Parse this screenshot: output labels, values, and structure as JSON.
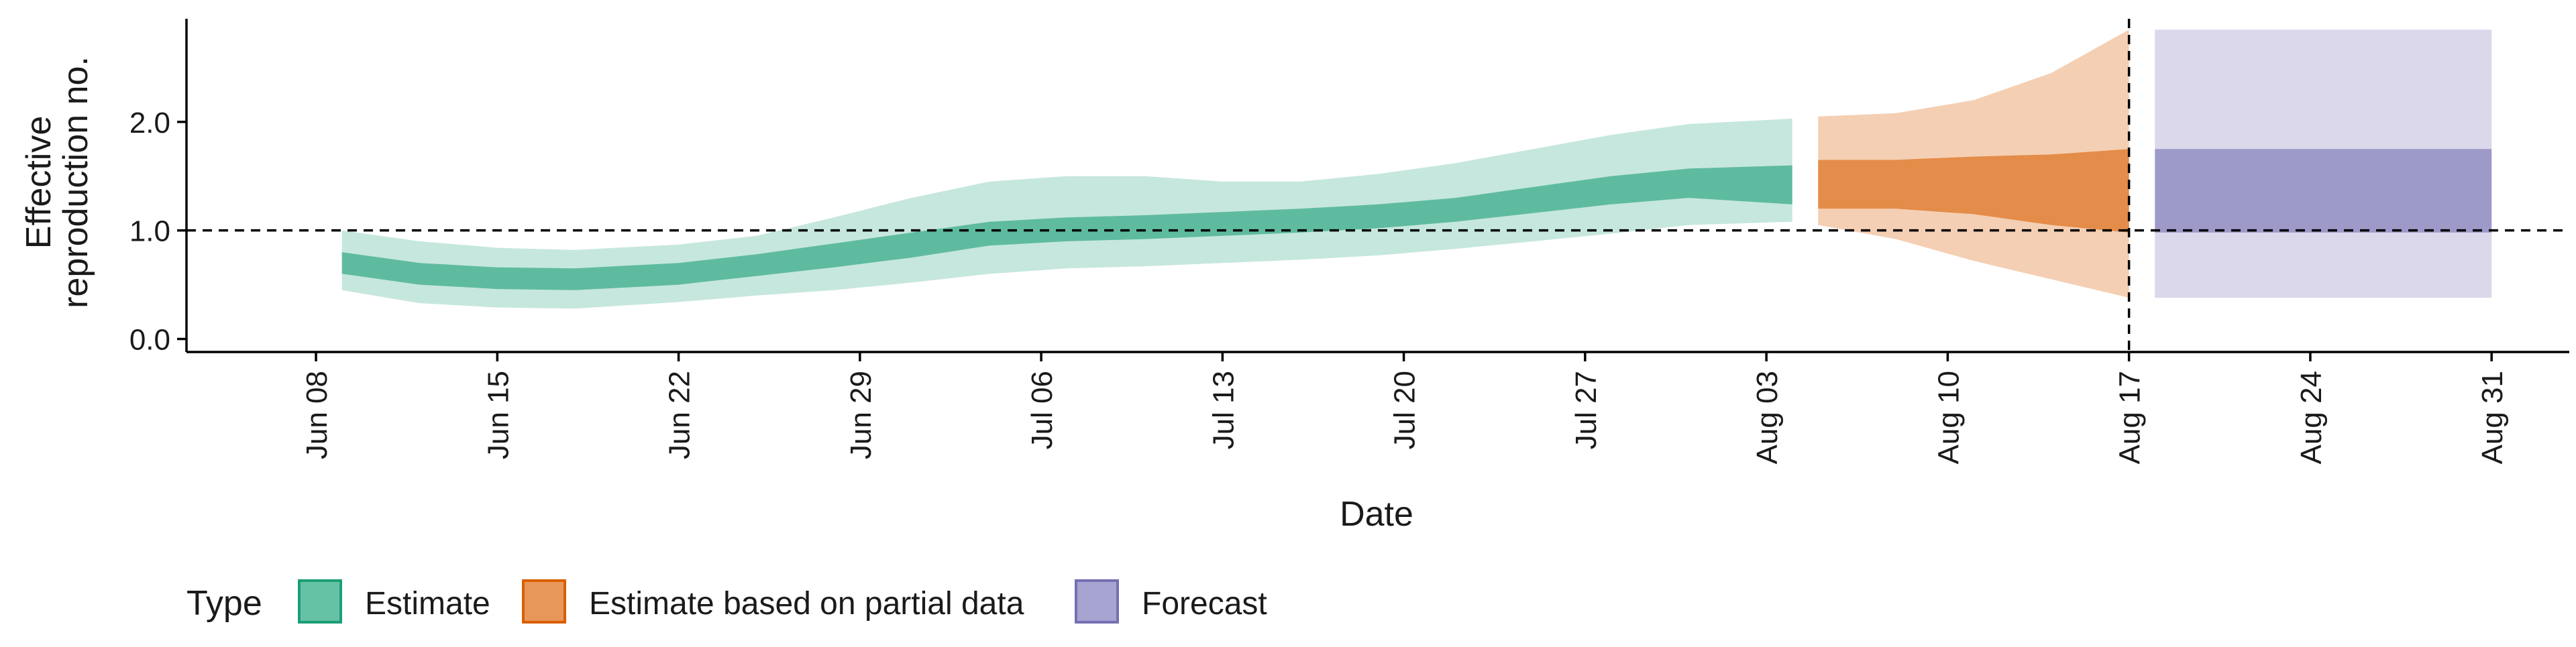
{
  "chart_data": {
    "type": "area",
    "ylabel_lines": [
      "Effective",
      "reproduction no."
    ],
    "xlabel": "Date",
    "y_ticks": [
      0.0,
      1.0,
      2.0
    ],
    "y_tick_labels": [
      "0.0",
      "1.0",
      "2.0"
    ],
    "ylim": [
      -0.12,
      2.95
    ],
    "xlim": [
      "2020-06-03",
      "2020-09-03"
    ],
    "x_ticks": [
      "2020-06-08",
      "2020-06-15",
      "2020-06-22",
      "2020-06-29",
      "2020-07-06",
      "2020-07-13",
      "2020-07-20",
      "2020-07-27",
      "2020-08-03",
      "2020-08-10",
      "2020-08-17",
      "2020-08-24",
      "2020-08-31"
    ],
    "x_tick_labels": [
      "Jun 08",
      "Jun 15",
      "Jun 22",
      "Jun 29",
      "Jul 06",
      "Jul 13",
      "Jul 20",
      "Jul 27",
      "Aug 03",
      "Aug 10",
      "Aug 17",
      "Aug 24",
      "Aug 31"
    ],
    "reference_hline": 1.0,
    "reference_vline": "2020-08-17",
    "grid": false,
    "legend_position": "bottom",
    "legend": {
      "title": "Type",
      "items": [
        {
          "label": "Estimate",
          "fill": "#66c2a5",
          "border": "#1b9e77"
        },
        {
          "label": "Estimate based on partial data",
          "fill": "#e8975b",
          "border": "#d95f02"
        },
        {
          "label": "Forecast",
          "fill": "#a8a4d2",
          "border": "#7570b3"
        }
      ]
    },
    "series": [
      {
        "name": "Estimate",
        "color": "#1b9e77",
        "outer_opacity": 0.25,
        "inner_opacity": 0.6,
        "points": [
          {
            "x": "2020-06-09",
            "outer_lo": 0.45,
            "outer_hi": 1.0,
            "inner_lo": 0.6,
            "inner_hi": 0.8
          },
          {
            "x": "2020-06-12",
            "outer_lo": 0.33,
            "outer_hi": 0.9,
            "inner_lo": 0.5,
            "inner_hi": 0.7
          },
          {
            "x": "2020-06-15",
            "outer_lo": 0.29,
            "outer_hi": 0.84,
            "inner_lo": 0.46,
            "inner_hi": 0.66
          },
          {
            "x": "2020-06-18",
            "outer_lo": 0.28,
            "outer_hi": 0.82,
            "inner_lo": 0.45,
            "inner_hi": 0.65
          },
          {
            "x": "2020-06-22",
            "outer_lo": 0.34,
            "outer_hi": 0.87,
            "inner_lo": 0.5,
            "inner_hi": 0.7
          },
          {
            "x": "2020-06-25",
            "outer_lo": 0.4,
            "outer_hi": 0.95,
            "inner_lo": 0.58,
            "inner_hi": 0.78
          },
          {
            "x": "2020-06-28",
            "outer_lo": 0.45,
            "outer_hi": 1.12,
            "inner_lo": 0.66,
            "inner_hi": 0.88
          },
          {
            "x": "2020-07-01",
            "outer_lo": 0.52,
            "outer_hi": 1.3,
            "inner_lo": 0.75,
            "inner_hi": 0.98
          },
          {
            "x": "2020-07-04",
            "outer_lo": 0.6,
            "outer_hi": 1.45,
            "inner_lo": 0.86,
            "inner_hi": 1.08
          },
          {
            "x": "2020-07-07",
            "outer_lo": 0.65,
            "outer_hi": 1.5,
            "inner_lo": 0.9,
            "inner_hi": 1.12
          },
          {
            "x": "2020-07-10",
            "outer_lo": 0.67,
            "outer_hi": 1.5,
            "inner_lo": 0.92,
            "inner_hi": 1.14
          },
          {
            "x": "2020-07-13",
            "outer_lo": 0.7,
            "outer_hi": 1.45,
            "inner_lo": 0.95,
            "inner_hi": 1.17
          },
          {
            "x": "2020-07-16",
            "outer_lo": 0.73,
            "outer_hi": 1.45,
            "inner_lo": 0.98,
            "inner_hi": 1.2
          },
          {
            "x": "2020-07-19",
            "outer_lo": 0.77,
            "outer_hi": 1.52,
            "inner_lo": 1.02,
            "inner_hi": 1.24
          },
          {
            "x": "2020-07-22",
            "outer_lo": 0.83,
            "outer_hi": 1.62,
            "inner_lo": 1.08,
            "inner_hi": 1.3
          },
          {
            "x": "2020-07-25",
            "outer_lo": 0.9,
            "outer_hi": 1.75,
            "inner_lo": 1.16,
            "inner_hi": 1.4
          },
          {
            "x": "2020-07-28",
            "outer_lo": 0.97,
            "outer_hi": 1.88,
            "inner_lo": 1.24,
            "inner_hi": 1.5
          },
          {
            "x": "2020-07-31",
            "outer_lo": 1.05,
            "outer_hi": 1.98,
            "inner_lo": 1.3,
            "inner_hi": 1.57
          },
          {
            "x": "2020-08-04",
            "outer_lo": 1.08,
            "outer_hi": 2.03,
            "inner_lo": 1.24,
            "inner_hi": 1.6
          }
        ]
      },
      {
        "name": "Estimate based on partial data",
        "color": "#d95f02",
        "outer_opacity": 0.3,
        "inner_opacity": 0.6,
        "points": [
          {
            "x": "2020-08-05",
            "outer_lo": 1.05,
            "outer_hi": 2.05,
            "inner_lo": 1.2,
            "inner_hi": 1.65
          },
          {
            "x": "2020-08-08",
            "outer_lo": 0.92,
            "outer_hi": 2.08,
            "inner_lo": 1.2,
            "inner_hi": 1.65
          },
          {
            "x": "2020-08-11",
            "outer_lo": 0.72,
            "outer_hi": 2.2,
            "inner_lo": 1.15,
            "inner_hi": 1.68
          },
          {
            "x": "2020-08-14",
            "outer_lo": 0.55,
            "outer_hi": 2.45,
            "inner_lo": 1.05,
            "inner_hi": 1.7
          },
          {
            "x": "2020-08-17",
            "outer_lo": 0.38,
            "outer_hi": 2.85,
            "inner_lo": 0.98,
            "inner_hi": 1.75
          }
        ]
      },
      {
        "name": "Forecast",
        "color": "#7570b3",
        "outer_opacity": 0.27,
        "inner_opacity": 0.6,
        "points": [
          {
            "x": "2020-08-18",
            "outer_lo": 0.38,
            "outer_hi": 2.85,
            "inner_lo": 0.98,
            "inner_hi": 1.75
          },
          {
            "x": "2020-08-31",
            "outer_lo": 0.38,
            "outer_hi": 2.85,
            "inner_lo": 0.98,
            "inner_hi": 1.75
          }
        ]
      }
    ]
  }
}
